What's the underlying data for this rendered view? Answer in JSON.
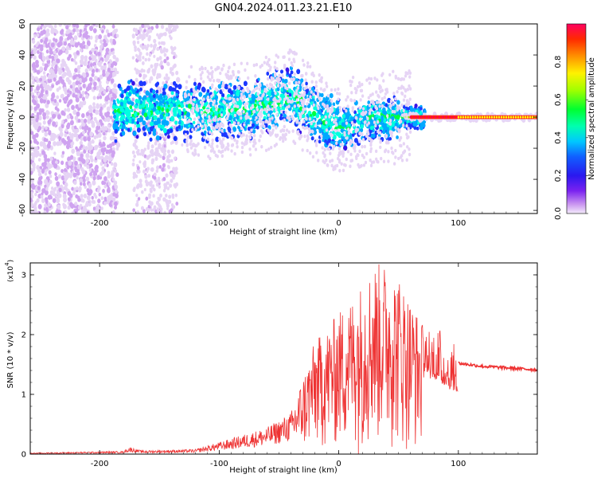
{
  "title": "GN04.2024.011.23.21.E10",
  "chart_data": [
    {
      "type": "heatmap",
      "title": "GN04.2024.011.23.21.E10",
      "xlabel": "Height of straight line (km)",
      "ylabel": "Frequency (Hz)",
      "xlim": [
        -258,
        166
      ],
      "ylim": [
        -62,
        60
      ],
      "xticks": [
        -200,
        -100,
        0,
        100
      ],
      "yticks": [
        -60,
        -40,
        -20,
        0,
        20,
        40,
        60
      ],
      "colorbar": {
        "label": "Normalized spectral amplitude",
        "range": [
          0,
          1
        ],
        "ticks": [
          "0.0",
          "0.2",
          "0.4",
          "0.6",
          "0.8"
        ],
        "colormap": [
          "#e6d4f5",
          "#cfa3f0",
          "#7a22f0",
          "#3a14e6",
          "#1c38ff",
          "#00a8ff",
          "#00ffe0",
          "#00ff40",
          "#7dff00",
          "#ffff00",
          "#ff9000",
          "#ff2000",
          "#ff0050"
        ]
      },
      "band_center_hz": [
        {
          "x": -185,
          "hz": 5
        },
        {
          "x": -150,
          "hz": 4
        },
        {
          "x": -110,
          "hz": 3
        },
        {
          "x": -70,
          "hz": 6
        },
        {
          "x": -40,
          "hz": 14
        },
        {
          "x": -20,
          "hz": 2
        },
        {
          "x": 0,
          "hz": -8
        },
        {
          "x": 20,
          "hz": -2
        },
        {
          "x": 50,
          "hz": 0
        },
        {
          "x": 80,
          "hz": 0
        },
        {
          "x": 166,
          "hz": 0
        }
      ]
    },
    {
      "type": "line",
      "xlabel": "Height of straight line (km)",
      "ylabel": "SNR (10 * v/v)",
      "y_multiplier": "(x10",
      "y_multiplier_exp": "4",
      "ylim": [
        0,
        3.2
      ],
      "xlim": [
        -258,
        166
      ],
      "xticks": [
        -200,
        -100,
        0,
        100
      ],
      "yticks": [
        0,
        1,
        2,
        3
      ],
      "series": [
        {
          "color": "#ee3333",
          "envelope": [
            {
              "x": -258,
              "y": 0.02
            },
            {
              "x": -180,
              "y": 0.05
            },
            {
              "x": -175,
              "y": 0.12
            },
            {
              "x": -165,
              "y": 0.06
            },
            {
              "x": -120,
              "y": 0.08
            },
            {
              "x": -100,
              "y": 0.2
            },
            {
              "x": -60,
              "y": 0.45
            },
            {
              "x": -40,
              "y": 0.7
            },
            {
              "x": -30,
              "y": 1.3
            },
            {
              "x": -20,
              "y": 1.9
            },
            {
              "x": -10,
              "y": 2.1
            },
            {
              "x": 0,
              "y": 2.4
            },
            {
              "x": 10,
              "y": 2.6
            },
            {
              "x": 20,
              "y": 2.9
            },
            {
              "x": 30,
              "y": 3.2
            },
            {
              "x": 40,
              "y": 3.2
            },
            {
              "x": 50,
              "y": 3.0
            },
            {
              "x": 60,
              "y": 2.6
            },
            {
              "x": 70,
              "y": 2.2
            },
            {
              "x": 80,
              "y": 2.2
            },
            {
              "x": 90,
              "y": 2.0
            },
            {
              "x": 100,
              "y": 1.75
            },
            {
              "x": 110,
              "y": 1.52
            },
            {
              "x": 120,
              "y": 1.48
            },
            {
              "x": 150,
              "y": 1.44
            },
            {
              "x": 166,
              "y": 1.4
            }
          ],
          "smooth_tail": [
            {
              "x": 100,
              "y": 1.52
            },
            {
              "x": 120,
              "y": 1.47
            },
            {
              "x": 166,
              "y": 1.41
            }
          ]
        }
      ]
    }
  ]
}
